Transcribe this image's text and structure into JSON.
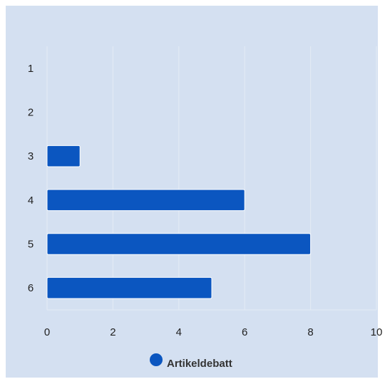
{
  "chart_data": {
    "type": "bar",
    "orientation": "horizontal",
    "categories": [
      "1",
      "2",
      "3",
      "4",
      "5",
      "6"
    ],
    "series": [
      {
        "name": "Artikeldebatt",
        "values": [
          0,
          0,
          1,
          6,
          8,
          5
        ]
      }
    ],
    "xlim": [
      0,
      10
    ],
    "x_ticks": [
      "0",
      "2",
      "4",
      "6",
      "8",
      "10"
    ],
    "grid": true,
    "legend": "bottom",
    "colors": {
      "bar": "#0b56c0",
      "background": "#d4e0f1",
      "grid": "#e4ebf5"
    }
  }
}
